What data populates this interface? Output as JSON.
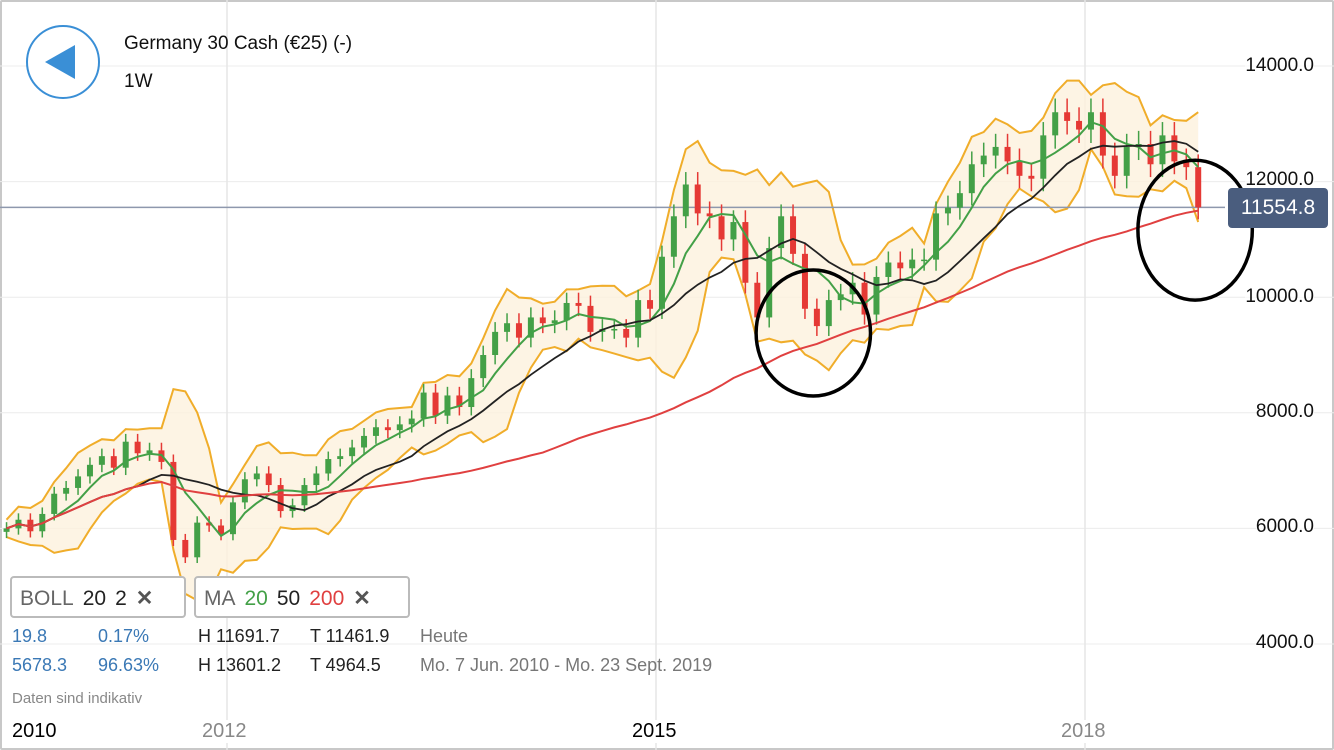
{
  "header": {
    "title": "Germany 30 Cash (€25) (-)",
    "period": "1W",
    "back_icon": "back-triangle-icon"
  },
  "indicators": {
    "boll": {
      "name": "BOLL",
      "p1": "20",
      "p2": "2"
    },
    "ma": {
      "name": "MA",
      "p1": "20",
      "p2": "50",
      "p3": "200"
    },
    "remove_icon": "close-x-icon"
  },
  "info": {
    "row1": {
      "a": "19.8",
      "b": "0.17%",
      "h": "H 11691.7",
      "t": "T 11461.9",
      "label": "Heute"
    },
    "row2": {
      "a": "5678.3",
      "b": "96.63%",
      "h": "H 13601.2",
      "t": "T 4964.5",
      "label": "Mo. 7 Jun. 2010 - Mo. 23 Sept. 2019"
    },
    "note": "Daten sind indikativ"
  },
  "current_price": "11554.8",
  "colors": {
    "up": "#43a047",
    "down": "#e53935",
    "ma20": "#43a047",
    "ma50": "#222222",
    "ma200": "#e04040",
    "boll": "#f0ad2a",
    "boll_fill": "#fdf1dd",
    "price_tag": "#4a5d7e",
    "accent": "#3a8fd6"
  },
  "chart_data": {
    "type": "candlestick",
    "y_ticks": [
      "14000.0",
      "12000.0",
      "10000.0",
      "8000.0",
      "6000.0",
      "4000.0"
    ],
    "x_ticks": [
      "2010",
      "2012",
      "2015",
      "2018"
    ],
    "ylim": [
      3800,
      14600
    ],
    "grid": true,
    "start_month": "2010-06",
    "close": [
      6000,
      6150,
      5950,
      6250,
      6600,
      6700,
      6900,
      7100,
      7250,
      7050,
      7500,
      7300,
      7350,
      7150,
      5800,
      5500,
      6100,
      6050,
      5900,
      6450,
      6850,
      6950,
      6750,
      6300,
      6400,
      6750,
      6950,
      7200,
      7250,
      7400,
      7600,
      7750,
      7700,
      7800,
      7900,
      8350,
      7950,
      8300,
      8100,
      8600,
      9000,
      9400,
      9550,
      9300,
      9650,
      9550,
      9600,
      9900,
      9850,
      9400,
      9450,
      9450,
      9300,
      9950,
      9800,
      10700,
      11400,
      11950,
      11450,
      11400,
      11000,
      11300,
      10250,
      9650,
      10850,
      11400,
      10750,
      9800,
      9500,
      9950,
      10050,
      10250,
      9700,
      10350,
      10600,
      10500,
      10650,
      10650,
      11450,
      11550,
      11800,
      12300,
      12450,
      12600,
      12350,
      12100,
      12050,
      12800,
      13200,
      13050,
      12900,
      13200,
      12450,
      12100,
      12600,
      12650,
      12300,
      12800,
      12350,
      12250,
      11554.8
    ],
    "overlays": [
      "BOLL 20 2",
      "MA 20",
      "MA 50",
      "MA 200"
    ],
    "annotations": [
      {
        "type": "ellipse",
        "center_date": 2016.1,
        "center_price": 9380,
        "half_width_years": 0.4,
        "half_height_price": 1090
      },
      {
        "type": "ellipse",
        "center_date": 2018.77,
        "center_price": 11160,
        "half_width_years": 0.4,
        "half_height_price": 1210
      }
    ]
  }
}
